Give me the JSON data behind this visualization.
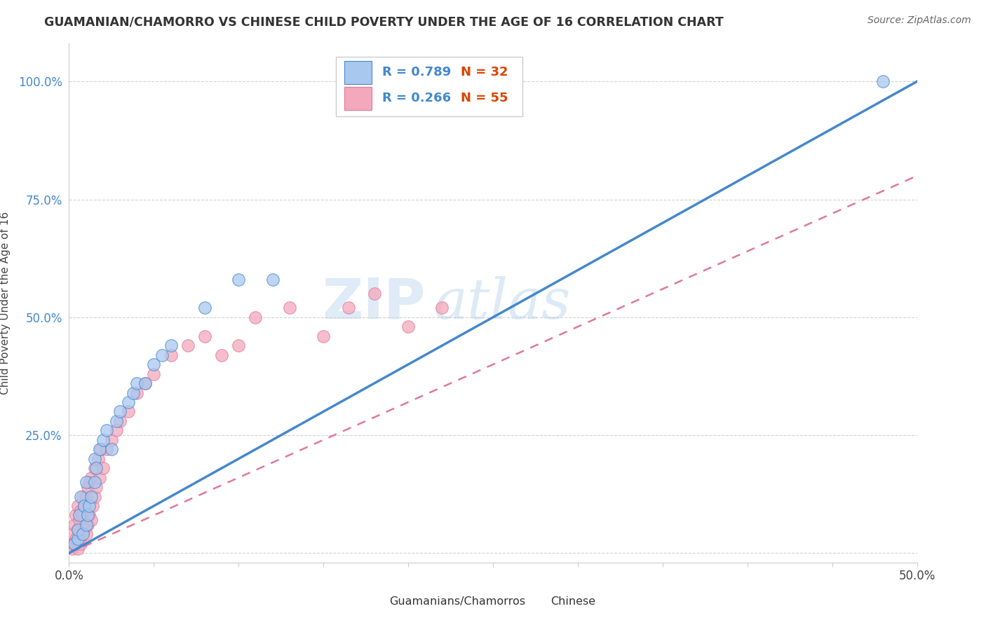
{
  "title": "GUAMANIAN/CHAMORRO VS CHINESE CHILD POVERTY UNDER THE AGE OF 16 CORRELATION CHART",
  "source": "Source: ZipAtlas.com",
  "ylabel": "Child Poverty Under the Age of 16",
  "xlim": [
    0.0,
    0.5
  ],
  "ylim": [
    -0.02,
    1.08
  ],
  "xticks": [
    0.0,
    0.05,
    0.1,
    0.15,
    0.2,
    0.25,
    0.3,
    0.35,
    0.4,
    0.45,
    0.5
  ],
  "xticklabels": [
    "0.0%",
    "",
    "",
    "",
    "",
    "",
    "",
    "",
    "",
    "",
    "50.0%"
  ],
  "yticks": [
    0.0,
    0.25,
    0.5,
    0.75,
    1.0
  ],
  "yticklabels": [
    "",
    "25.0%",
    "50.0%",
    "75.0%",
    "100.0%"
  ],
  "blue_color": "#A8C8F0",
  "pink_color": "#F4A8BC",
  "blue_line_color": "#4488CC",
  "pink_line_color": "#E07898",
  "legend_r_blue": "R = 0.789",
  "legend_n_blue": "N = 32",
  "legend_r_pink": "R = 0.266",
  "legend_n_pink": "N = 55",
  "watermark_zip": "ZIP",
  "watermark_atlas": "atlas",
  "background_color": "#FFFFFF",
  "grid_color": "#CCCCCC",
  "blue_line_x0": 0.0,
  "blue_line_y0": 0.0,
  "blue_line_x1": 0.5,
  "blue_line_y1": 1.0,
  "pink_line_x0": 0.0,
  "pink_line_y0": 0.0,
  "pink_line_x1": 0.5,
  "pink_line_y1": 0.8,
  "blue_scatter_x": [
    0.003,
    0.005,
    0.005,
    0.006,
    0.007,
    0.008,
    0.009,
    0.01,
    0.01,
    0.011,
    0.012,
    0.013,
    0.015,
    0.015,
    0.016,
    0.018,
    0.02,
    0.022,
    0.025,
    0.028,
    0.03,
    0.035,
    0.038,
    0.04,
    0.045,
    0.05,
    0.055,
    0.06,
    0.08,
    0.1,
    0.12,
    0.48
  ],
  "blue_scatter_y": [
    0.02,
    0.03,
    0.05,
    0.08,
    0.12,
    0.04,
    0.1,
    0.06,
    0.15,
    0.08,
    0.1,
    0.12,
    0.15,
    0.2,
    0.18,
    0.22,
    0.24,
    0.26,
    0.22,
    0.28,
    0.3,
    0.32,
    0.34,
    0.36,
    0.36,
    0.4,
    0.42,
    0.44,
    0.52,
    0.58,
    0.58,
    1.0
  ],
  "pink_scatter_x": [
    0.001,
    0.002,
    0.002,
    0.003,
    0.003,
    0.004,
    0.004,
    0.005,
    0.005,
    0.005,
    0.006,
    0.006,
    0.007,
    0.007,
    0.008,
    0.008,
    0.008,
    0.009,
    0.009,
    0.01,
    0.01,
    0.011,
    0.011,
    0.012,
    0.012,
    0.013,
    0.013,
    0.014,
    0.015,
    0.015,
    0.016,
    0.017,
    0.018,
    0.019,
    0.02,
    0.022,
    0.025,
    0.028,
    0.03,
    0.035,
    0.04,
    0.045,
    0.05,
    0.06,
    0.07,
    0.08,
    0.09,
    0.1,
    0.11,
    0.13,
    0.15,
    0.165,
    0.18,
    0.2,
    0.22
  ],
  "pink_scatter_y": [
    0.02,
    0.01,
    0.04,
    0.02,
    0.06,
    0.03,
    0.08,
    0.01,
    0.05,
    0.1,
    0.03,
    0.07,
    0.02,
    0.09,
    0.04,
    0.08,
    0.12,
    0.05,
    0.1,
    0.04,
    0.12,
    0.06,
    0.14,
    0.08,
    0.15,
    0.07,
    0.16,
    0.1,
    0.12,
    0.18,
    0.14,
    0.2,
    0.16,
    0.22,
    0.18,
    0.22,
    0.24,
    0.26,
    0.28,
    0.3,
    0.34,
    0.36,
    0.38,
    0.42,
    0.44,
    0.46,
    0.42,
    0.44,
    0.5,
    0.52,
    0.46,
    0.52,
    0.55,
    0.48,
    0.52
  ]
}
